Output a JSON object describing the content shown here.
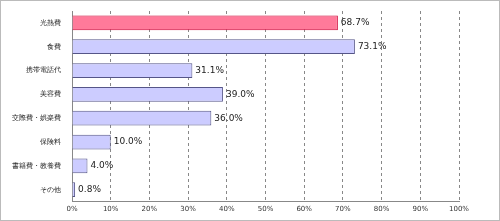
{
  "chart_data": {
    "type": "bar",
    "orientation": "horizontal",
    "categories": [
      "光熱費",
      "食費",
      "携帯電話代",
      "美容費",
      "交際費・娯楽費",
      "保険料",
      "書籍費・教養費",
      "その他"
    ],
    "values": [
      68.7,
      73.1,
      31.1,
      39.0,
      36.0,
      10.0,
      4.0,
      0.8
    ],
    "value_labels": [
      "68.7%",
      "73.1%",
      "31.1%",
      "39.0%",
      "36.0%",
      "10.0%",
      "4.0%",
      "0.8%"
    ],
    "data_labels": true,
    "colors": [
      "#ff7a9a",
      "#ccccff",
      "#ccccff",
      "#ccccff",
      "#ccccff",
      "#ccccff",
      "#ccccff",
      "#ccccff"
    ],
    "xlim": [
      0,
      100
    ],
    "xticks": [
      {
        "value": 0,
        "label": "0%"
      },
      {
        "value": 10,
        "label": "10%"
      },
      {
        "value": 20,
        "label": "20%"
      },
      {
        "value": 30,
        "label": "30%"
      },
      {
        "value": 40,
        "label": "40%"
      },
      {
        "value": 50,
        "label": "50%"
      },
      {
        "value": 60,
        "label": "60%"
      },
      {
        "value": 70,
        "label": "70%"
      },
      {
        "value": 80,
        "label": "80%"
      },
      {
        "value": 90,
        "label": "90%"
      },
      {
        "value": 100,
        "label": "100%"
      }
    ],
    "grid": true
  }
}
